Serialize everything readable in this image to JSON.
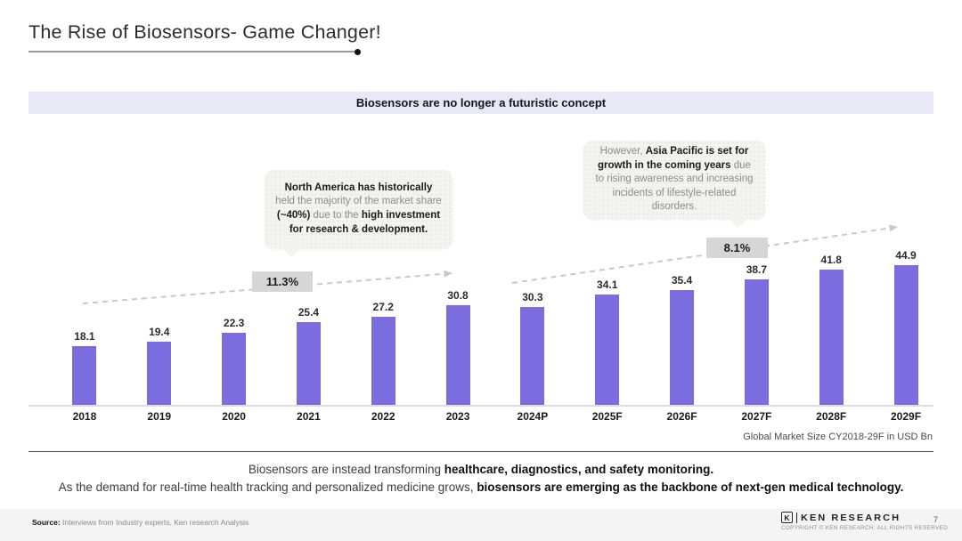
{
  "title": "The Rise of Biosensors- Game Changer!",
  "banner_text": "Biosensors are no longer a futuristic concept",
  "callouts": {
    "north_america": {
      "seg1_bold": "North America has historically",
      "seg2": " held the majority of the market share ",
      "seg3_bold": "(~40%)",
      "seg4": " due to the ",
      "seg5_bold": "high investment for research & development."
    },
    "asia_pacific": {
      "seg1": "However, ",
      "seg2_bold": "Asia Pacific is set for growth in the coming years",
      "seg3": " due to rising awareness and increasing incidents of lifestyle-related disorders."
    }
  },
  "chart_data": {
    "type": "bar",
    "categories": [
      "2018",
      "2019",
      "2020",
      "2021",
      "2022",
      "2023",
      "2024P",
      "2025F",
      "2026F",
      "2027F",
      "2028F",
      "2029F"
    ],
    "values": [
      18.1,
      19.4,
      22.3,
      25.4,
      27.2,
      30.8,
      30.3,
      34.1,
      35.4,
      38.7,
      41.8,
      44.9
    ],
    "title": "",
    "xlabel": "",
    "ylabel": "",
    "ylim": [
      0,
      48
    ],
    "grid": false,
    "legend": "none",
    "bar_color": "#7b6ce0",
    "cagr_labels": [
      "11.3%",
      "8.1%"
    ],
    "caption": "Global Market Size CY2018-29F in USD Bn"
  },
  "summary": {
    "line1": "Biosensors are instead transforming ",
    "line1_bold": "healthcare, diagnostics, and safety monitoring.",
    "line2": "As the demand for real-time health tracking and personalized medicine grows, ",
    "line2_bold": "biosensors are emerging as the backbone of next-gen medical technology."
  },
  "footer": {
    "source_label": "Source:",
    "source_text": " Interviews from Industry experts, Ken research Analysis",
    "logo_letter": "K",
    "logo_text": "KEN RESEARCH",
    "copyright": "COPYRIGHT © KEN RESEARCH. ALL RIGHTS RESERVED",
    "page_number": "7"
  }
}
